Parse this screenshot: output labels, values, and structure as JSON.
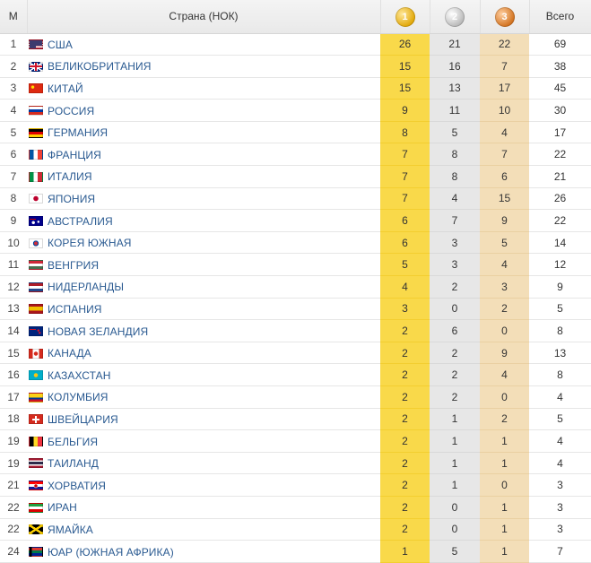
{
  "header": {
    "rank_label": "М",
    "country_label": "Страна (НОК)",
    "gold_symbol": "1",
    "silver_symbol": "2",
    "bronze_symbol": "3",
    "total_label": "Всего"
  },
  "colors": {
    "gold": "#f9d94a",
    "silver": "#e7e7e7",
    "bronze": "#f3deb8",
    "link": "#2a5a91"
  },
  "rows": [
    {
      "rank": "1",
      "flag": "flag-usa",
      "country": "США",
      "gold": "26",
      "silver": "21",
      "bronze": "22",
      "total": "69"
    },
    {
      "rank": "2",
      "flag": "flag-uk",
      "country": "ВЕЛИКОБРИТАНИЯ",
      "gold": "15",
      "silver": "16",
      "bronze": "7",
      "total": "38"
    },
    {
      "rank": "3",
      "flag": "flag-china",
      "country": "КИТАЙ",
      "gold": "15",
      "silver": "13",
      "bronze": "17",
      "total": "45"
    },
    {
      "rank": "4",
      "flag": "flag-russia",
      "country": "РОССИЯ",
      "gold": "9",
      "silver": "11",
      "bronze": "10",
      "total": "30"
    },
    {
      "rank": "5",
      "flag": "flag-germany",
      "country": "ГЕРМАНИЯ",
      "gold": "8",
      "silver": "5",
      "bronze": "4",
      "total": "17"
    },
    {
      "rank": "6",
      "flag": "flag-france",
      "country": "ФРАНЦИЯ",
      "gold": "7",
      "silver": "8",
      "bronze": "7",
      "total": "22"
    },
    {
      "rank": "7",
      "flag": "flag-italy",
      "country": "ИТАЛИЯ",
      "gold": "7",
      "silver": "8",
      "bronze": "6",
      "total": "21"
    },
    {
      "rank": "8",
      "flag": "flag-japan",
      "country": "ЯПОНИЯ",
      "gold": "7",
      "silver": "4",
      "bronze": "15",
      "total": "26"
    },
    {
      "rank": "9",
      "flag": "flag-australia",
      "country": "АВСТРАЛИЯ",
      "gold": "6",
      "silver": "7",
      "bronze": "9",
      "total": "22"
    },
    {
      "rank": "10",
      "flag": "flag-south-korea",
      "country": "КОРЕЯ ЮЖНАЯ",
      "gold": "6",
      "silver": "3",
      "bronze": "5",
      "total": "14"
    },
    {
      "rank": "11",
      "flag": "flag-hungary",
      "country": "ВЕНГРИЯ",
      "gold": "5",
      "silver": "3",
      "bronze": "4",
      "total": "12"
    },
    {
      "rank": "12",
      "flag": "flag-netherlands",
      "country": "НИДЕРЛАНДЫ",
      "gold": "4",
      "silver": "2",
      "bronze": "3",
      "total": "9"
    },
    {
      "rank": "13",
      "flag": "flag-spain",
      "country": "ИСПАНИЯ",
      "gold": "3",
      "silver": "0",
      "bronze": "2",
      "total": "5"
    },
    {
      "rank": "14",
      "flag": "flag-new-zealand",
      "country": "НОВАЯ ЗЕЛАНДИЯ",
      "gold": "2",
      "silver": "6",
      "bronze": "0",
      "total": "8"
    },
    {
      "rank": "15",
      "flag": "flag-canada",
      "country": "КАНАДА",
      "gold": "2",
      "silver": "2",
      "bronze": "9",
      "total": "13"
    },
    {
      "rank": "16",
      "flag": "flag-kazakhstan",
      "country": "КАЗАХСТАН",
      "gold": "2",
      "silver": "2",
      "bronze": "4",
      "total": "8"
    },
    {
      "rank": "17",
      "flag": "flag-colombia",
      "country": "КОЛУМБИЯ",
      "gold": "2",
      "silver": "2",
      "bronze": "0",
      "total": "4"
    },
    {
      "rank": "18",
      "flag": "flag-switzerland",
      "country": "ШВЕЙЦАРИЯ",
      "gold": "2",
      "silver": "1",
      "bronze": "2",
      "total": "5"
    },
    {
      "rank": "19",
      "flag": "flag-belgium",
      "country": "БЕЛЬГИЯ",
      "gold": "2",
      "silver": "1",
      "bronze": "1",
      "total": "4"
    },
    {
      "rank": "19",
      "flag": "flag-thailand",
      "country": "ТАИЛАНД",
      "gold": "2",
      "silver": "1",
      "bronze": "1",
      "total": "4"
    },
    {
      "rank": "21",
      "flag": "flag-croatia",
      "country": "ХОРВАТИЯ",
      "gold": "2",
      "silver": "1",
      "bronze": "0",
      "total": "3"
    },
    {
      "rank": "22",
      "flag": "flag-iran",
      "country": "ИРАН",
      "gold": "2",
      "silver": "0",
      "bronze": "1",
      "total": "3"
    },
    {
      "rank": "22",
      "flag": "flag-jamaica",
      "country": "ЯМАЙКА",
      "gold": "2",
      "silver": "0",
      "bronze": "1",
      "total": "3"
    },
    {
      "rank": "24",
      "flag": "flag-south-africa",
      "country": "ЮАР (ЮЖНАЯ АФРИКА)",
      "gold": "1",
      "silver": "5",
      "bronze": "1",
      "total": "7"
    }
  ]
}
